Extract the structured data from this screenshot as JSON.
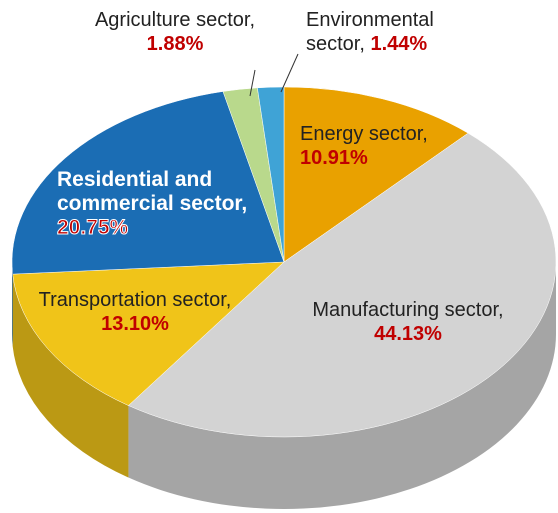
{
  "chart_data": {
    "type": "pie",
    "categories": [
      "Energy sector,",
      "Manufacturing sector,",
      "Transportation sector,",
      "Residential and commercial sector,",
      "Agriculture sector,",
      "Environmental sector,"
    ],
    "values": [
      10.91,
      44.13,
      13.1,
      20.75,
      1.88,
      1.44
    ],
    "value_labels": [
      "10.91%",
      "44.13%",
      "13.10%",
      "20.75%",
      "1.88%",
      "1.44%"
    ],
    "colors": [
      "#e9a100",
      "#d3d3d3",
      "#f0c419",
      "#1b6db4",
      "#b9d98c",
      "#3fa3d6"
    ]
  }
}
